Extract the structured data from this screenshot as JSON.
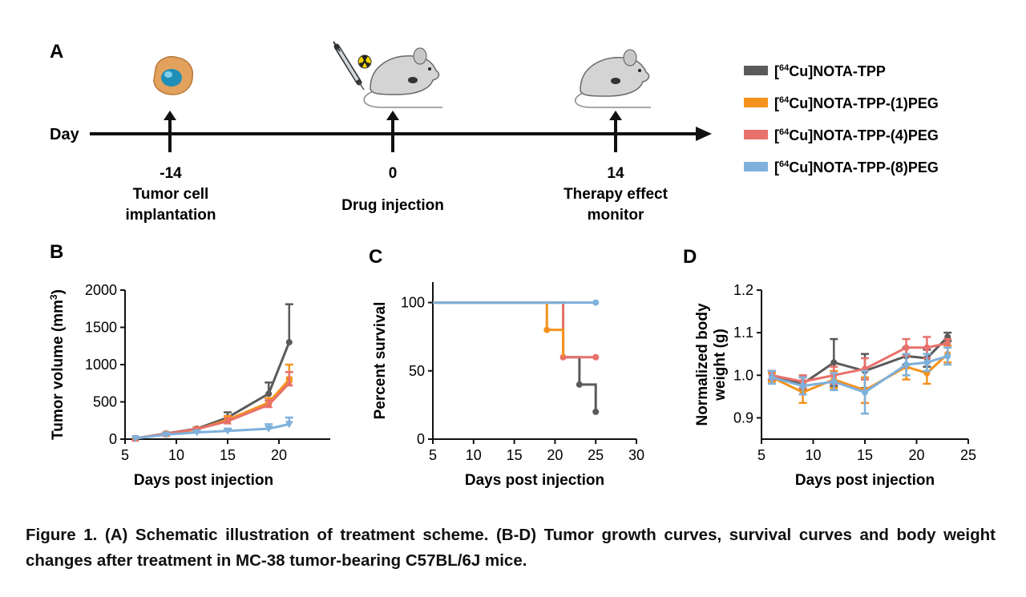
{
  "panels": {
    "a": "A",
    "b": "B",
    "c": "C",
    "d": "D"
  },
  "timeline": {
    "axis_label": "Day",
    "events": [
      {
        "day": "-14",
        "line1": "Tumor cell",
        "line2": "implantation"
      },
      {
        "day": "0",
        "line1": "Drug injection",
        "line2": ""
      },
      {
        "day": "14",
        "line1": "Therapy effect",
        "line2": "monitor"
      }
    ]
  },
  "legend": [
    {
      "sup": "64",
      "label": "Cu]NOTA-TPP",
      "color": "#5a5a5a"
    },
    {
      "sup": "64",
      "label": "Cu]NOTA-TPP-(1)PEG",
      "color": "#f5921e"
    },
    {
      "sup": "64",
      "label": "Cu]NOTA-TPP-(4)PEG",
      "color": "#e8716b"
    },
    {
      "sup": "64",
      "label": "Cu]NOTA-TPP-(8)PEG",
      "color": "#7eb0db"
    }
  ],
  "chart_data": [
    {
      "type": "line",
      "panel": "B",
      "xlabel": "Days post injection",
      "ylabel": "Tumor volume (mm",
      "ylabel_sup": "3",
      "xlim": [
        5,
        25
      ],
      "ylim": [
        0,
        2000
      ],
      "xticks": [
        5,
        10,
        15,
        20
      ],
      "yticks": [
        0,
        500,
        1000,
        1500,
        2000
      ],
      "series": [
        {
          "color": "#5a5a5a",
          "marker": "circle",
          "x": [
            6,
            9,
            12,
            15,
            19,
            21
          ],
          "y": [
            10,
            75,
            140,
            290,
            610,
            1300
          ],
          "err": [
            0,
            10,
            20,
            70,
            150,
            510
          ]
        },
        {
          "color": "#f5921e",
          "marker": "square",
          "x": [
            6,
            9,
            12,
            15,
            19,
            21
          ],
          "y": [
            10,
            70,
            130,
            260,
            490,
            800
          ],
          "err": [
            0,
            10,
            20,
            50,
            60,
            200
          ]
        },
        {
          "color": "#e8716b",
          "marker": "triangle",
          "x": [
            6,
            9,
            12,
            15,
            19,
            21
          ],
          "y": [
            10,
            72,
            135,
            240,
            460,
            750
          ],
          "err": [
            0,
            10,
            20,
            40,
            60,
            150
          ]
        },
        {
          "color": "#7eb0db",
          "marker": "triangle-down",
          "x": [
            6,
            9,
            12,
            15,
            19,
            21
          ],
          "y": [
            10,
            60,
            90,
            110,
            140,
            200
          ],
          "err": [
            0,
            10,
            20,
            30,
            60,
            90
          ]
        }
      ]
    },
    {
      "type": "line",
      "panel": "C",
      "xlabel": "Days post injection",
      "ylabel": "Percent survival",
      "xlim": [
        5,
        30
      ],
      "ylim": [
        0,
        115
      ],
      "xticks": [
        5,
        10,
        15,
        20,
        25,
        30
      ],
      "yticks": [
        0,
        50,
        100
      ],
      "series": [
        {
          "color": "#5a5a5a",
          "steps": [
            [
              5,
              100
            ],
            [
              21,
              100
            ],
            [
              21,
              60
            ],
            [
              23,
              60
            ],
            [
              23,
              40
            ],
            [
              25,
              40
            ],
            [
              25,
              20
            ]
          ],
          "points": [
            [
              23,
              40
            ],
            [
              25,
              20
            ]
          ]
        },
        {
          "color": "#e8716b",
          "steps": [
            [
              5,
              100
            ],
            [
              21,
              100
            ],
            [
              21,
              60
            ],
            [
              25,
              60
            ]
          ],
          "points": [
            [
              21,
              60
            ],
            [
              25,
              60
            ]
          ]
        },
        {
          "color": "#f5921e",
          "steps": [
            [
              5,
              100
            ],
            [
              19,
              100
            ],
            [
              19,
              80
            ],
            [
              21,
              80
            ],
            [
              21,
              60
            ]
          ],
          "points": [
            [
              19,
              80
            ]
          ]
        },
        {
          "color": "#7eb0db",
          "steps": [
            [
              5,
              100
            ],
            [
              25,
              100
            ]
          ],
          "points": [
            [
              25,
              100
            ]
          ]
        }
      ]
    },
    {
      "type": "line",
      "panel": "D",
      "xlabel": "Days post injection",
      "ylabel": "Normalized body",
      "ylabel2": "weight (g)",
      "xlim": [
        5,
        25
      ],
      "ylim": [
        0.85,
        1.2
      ],
      "xticks": [
        5,
        10,
        15,
        20,
        25
      ],
      "yticks": [
        0.9,
        1.0,
        1.1,
        1.2
      ],
      "series": [
        {
          "color": "#5a5a5a",
          "x": [
            6,
            9,
            12,
            15,
            19,
            21,
            23
          ],
          "y": [
            1.0,
            0.98,
            1.03,
            1.01,
            1.045,
            1.04,
            1.09
          ],
          "err": [
            0.01,
            0.015,
            0.055,
            0.04,
            0.02,
            0.02,
            0.01
          ]
        },
        {
          "color": "#f5921e",
          "x": [
            6,
            9,
            12,
            15,
            19,
            21,
            23
          ],
          "y": [
            0.995,
            0.96,
            0.99,
            0.965,
            1.02,
            1.005,
            1.05
          ],
          "err": [
            0.01,
            0.025,
            0.02,
            0.03,
            0.03,
            0.025,
            0.02
          ]
        },
        {
          "color": "#e8716b",
          "x": [
            6,
            9,
            12,
            15,
            19,
            21,
            23
          ],
          "y": [
            1.0,
            0.985,
            1.0,
            1.015,
            1.065,
            1.065,
            1.075
          ],
          "err": [
            0.01,
            0.015,
            0.02,
            0.025,
            0.02,
            0.025,
            0.01
          ]
        },
        {
          "color": "#7eb0db",
          "x": [
            6,
            9,
            12,
            15,
            19,
            21,
            23
          ],
          "y": [
            0.995,
            0.975,
            0.985,
            0.96,
            1.025,
            1.03,
            1.045
          ],
          "err": [
            0.015,
            0.02,
            0.02,
            0.05,
            0.025,
            0.02,
            0.02
          ]
        }
      ]
    }
  ],
  "caption": "Figure 1. (A) Schematic illustration of treatment scheme. (B-D) Tumor growth curves,  survival curves and body weight changes after treatment in MC-38 tumor-bearing C57BL/6J mice."
}
